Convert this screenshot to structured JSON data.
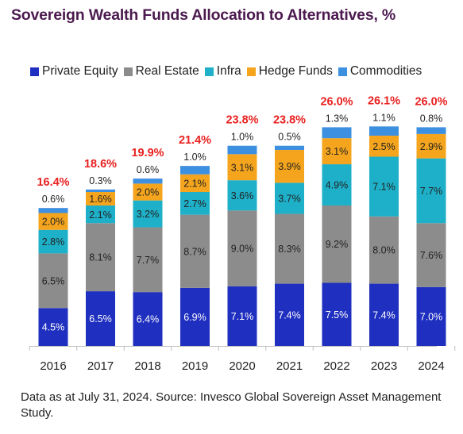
{
  "chart_data": {
    "type": "bar",
    "stacked": true,
    "title": "Sovereign Wealth Funds Allocation to Alternatives, %",
    "categories": [
      "2016",
      "2017",
      "2018",
      "2019",
      "2020",
      "2021",
      "2022",
      "2023",
      "2024"
    ],
    "series": [
      {
        "name": "Private Equity",
        "color": "#1f2fbf",
        "values": [
          4.5,
          6.5,
          6.4,
          6.9,
          7.1,
          7.4,
          7.5,
          7.4,
          7.0
        ],
        "labels": [
          "4.5%",
          "6.5%",
          "6.4%",
          "6.9%",
          "7.1%",
          "7.4%",
          "7.5%",
          "7.4%",
          "7.0%"
        ]
      },
      {
        "name": "Real Estate",
        "color": "#8c8c8c",
        "values": [
          6.5,
          8.1,
          7.7,
          8.7,
          9.0,
          8.3,
          9.2,
          8.0,
          7.6
        ],
        "labels": [
          "6.5%",
          "8.1%",
          "7.7%",
          "8.7%",
          "9.0%",
          "8.3%",
          "9.2%",
          "8.0%",
          "7.6%"
        ]
      },
      {
        "name": "Infra",
        "color": "#1eb0c8",
        "values": [
          2.8,
          2.1,
          3.2,
          2.7,
          3.6,
          3.7,
          4.9,
          7.1,
          7.7
        ],
        "labels": [
          "2.8%",
          "2.1%",
          "3.2%",
          "2.7%",
          "3.6%",
          "3.7%",
          "4.9%",
          "7.1%",
          "7.7%"
        ]
      },
      {
        "name": "Hedge Funds",
        "color": "#f5a51d",
        "values": [
          2.0,
          1.6,
          2.0,
          2.1,
          3.1,
          3.9,
          3.1,
          2.5,
          2.9
        ],
        "labels": [
          "2.0%",
          "1.6%",
          "2.0%",
          "2.1%",
          "3.1%",
          "3.9%",
          "3.1%",
          "2.5%",
          "2.9%"
        ]
      },
      {
        "name": "Commodities",
        "color": "#3d8fe0",
        "values": [
          0.6,
          0.3,
          0.6,
          1.0,
          1.0,
          0.5,
          1.3,
          1.1,
          0.8
        ],
        "labels": [
          "0.6%",
          "0.3%",
          "0.6%",
          "1.0%",
          "1.0%",
          "0.5%",
          "1.3%",
          "1.1%",
          "0.8%"
        ]
      }
    ],
    "totals": [
      "16.4%",
      "18.6%",
      "19.9%",
      "21.4%",
      "23.8%",
      "23.8%",
      "26.0%",
      "26.1%",
      "26.0%"
    ],
    "total_color": "#e8201f",
    "legend_position": "top",
    "grid": false
  },
  "footnote": "Data as at July 31, 2024. Source: Invesco Global Sovereign Asset Management Study."
}
